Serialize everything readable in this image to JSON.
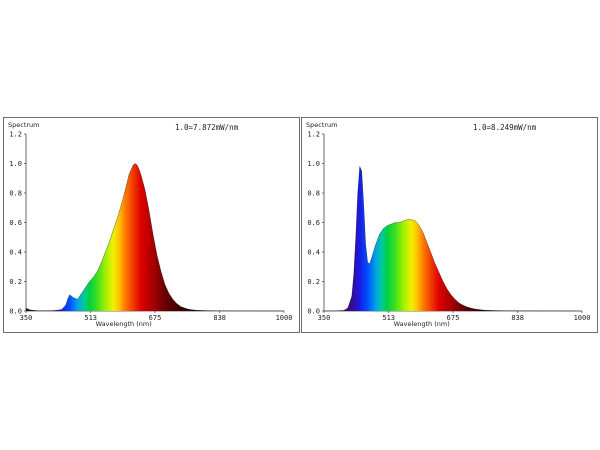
{
  "chart_data": [
    {
      "type": "area",
      "title": "",
      "ylabel": "Spectrum",
      "xlabel": "Wavelength (nm)",
      "annotation": "1.0=7.872mW/nm",
      "xlim": [
        350,
        1000
      ],
      "ylim": [
        0,
        1.2
      ],
      "xticks": [
        "350",
        "513",
        "675",
        "838",
        "1000"
      ],
      "yticks": [
        "0.0",
        "0.2",
        "0.4",
        "0.6",
        "0.8",
        "1.0",
        "1.2"
      ],
      "x": [
        350,
        360,
        380,
        400,
        420,
        440,
        450,
        455,
        460,
        465,
        470,
        480,
        490,
        500,
        510,
        520,
        530,
        540,
        550,
        560,
        570,
        580,
        590,
        600,
        610,
        620,
        625,
        630,
        635,
        640,
        650,
        660,
        670,
        680,
        690,
        700,
        710,
        720,
        730,
        740,
        750,
        760,
        770,
        780,
        800,
        820,
        850,
        900,
        950,
        1000
      ],
      "y": [
        0.02,
        0.008,
        0.002,
        0.002,
        0.003,
        0.01,
        0.04,
        0.08,
        0.11,
        0.1,
        0.09,
        0.08,
        0.12,
        0.16,
        0.2,
        0.23,
        0.27,
        0.33,
        0.4,
        0.47,
        0.55,
        0.63,
        0.72,
        0.82,
        0.93,
        0.99,
        1.0,
        0.99,
        0.96,
        0.92,
        0.82,
        0.68,
        0.52,
        0.38,
        0.27,
        0.18,
        0.12,
        0.08,
        0.05,
        0.03,
        0.02,
        0.012,
        0.008,
        0.005,
        0.003,
        0.002,
        0.001,
        0.0005,
        0.0002,
        0.0
      ]
    },
    {
      "type": "area",
      "title": "",
      "ylabel": "Spectrum",
      "xlabel": "Wavelength (nm)",
      "annotation": "1.0=8.249mW/nm",
      "xlim": [
        350,
        1000
      ],
      "ylim": [
        0,
        1.2
      ],
      "xticks": [
        "350",
        "513",
        "675",
        "838",
        "1000"
      ],
      "yticks": [
        "0.0",
        "0.2",
        "0.4",
        "0.6",
        "0.8",
        "1.0",
        "1.2"
      ],
      "x": [
        350,
        380,
        400,
        410,
        420,
        425,
        430,
        435,
        440,
        445,
        450,
        455,
        460,
        465,
        470,
        480,
        490,
        500,
        510,
        520,
        530,
        540,
        550,
        560,
        570,
        580,
        590,
        600,
        610,
        620,
        630,
        640,
        650,
        660,
        670,
        680,
        690,
        700,
        710,
        720,
        730,
        740,
        750,
        760,
        780,
        800,
        850,
        900,
        1000
      ],
      "y": [
        0.0,
        0.001,
        0.004,
        0.02,
        0.1,
        0.25,
        0.5,
        0.8,
        0.98,
        0.95,
        0.72,
        0.45,
        0.33,
        0.32,
        0.36,
        0.45,
        0.52,
        0.56,
        0.58,
        0.59,
        0.6,
        0.6,
        0.61,
        0.62,
        0.62,
        0.61,
        0.58,
        0.53,
        0.46,
        0.39,
        0.32,
        0.26,
        0.2,
        0.15,
        0.11,
        0.08,
        0.055,
        0.04,
        0.028,
        0.02,
        0.014,
        0.01,
        0.007,
        0.005,
        0.003,
        0.002,
        0.001,
        0.0005,
        0.0
      ]
    }
  ]
}
